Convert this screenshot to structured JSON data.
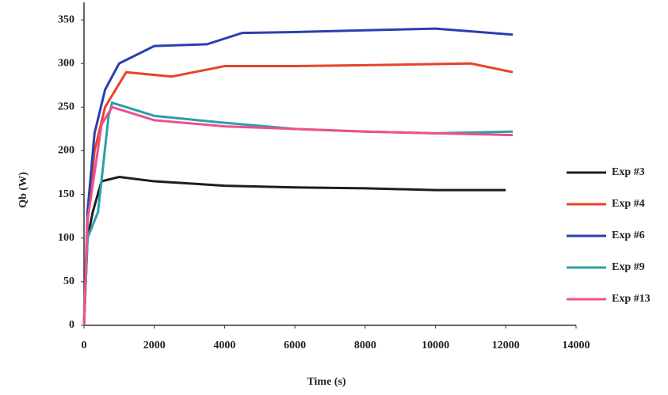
{
  "chart_data": {
    "type": "line",
    "xlabel": "Time (s)",
    "ylabel": "Qb (W)",
    "xlim": [
      0,
      14000
    ],
    "xticks": [
      0,
      2000,
      4000,
      6000,
      8000,
      10000,
      12000,
      14000
    ],
    "ylim": [
      0,
      370
    ],
    "yticks": [
      0,
      50,
      100,
      150,
      200,
      250,
      300,
      350
    ],
    "legend": "right",
    "series": [
      {
        "name": "Exp #3",
        "color": "#1e1e1e",
        "x": [
          0,
          100,
          250,
          500,
          1000,
          2000,
          4000,
          6000,
          8000,
          10000,
          12000
        ],
        "values": [
          0,
          100,
          130,
          165,
          170,
          165,
          160,
          158,
          157,
          155,
          155
        ]
      },
      {
        "name": "Exp #4",
        "color": "#e8432a",
        "x": [
          0,
          100,
          300,
          600,
          1200,
          2500,
          4000,
          6000,
          8000,
          11000,
          12200
        ],
        "values": [
          0,
          120,
          200,
          250,
          290,
          285,
          297,
          297,
          298,
          300,
          290
        ]
      },
      {
        "name": "Exp #6",
        "color": "#2a3fb0",
        "x": [
          0,
          100,
          300,
          600,
          1000,
          2000,
          3500,
          4500,
          6000,
          8000,
          10000,
          12200
        ],
        "values": [
          0,
          130,
          220,
          270,
          300,
          320,
          322,
          335,
          336,
          338,
          340,
          333
        ]
      },
      {
        "name": "Exp #9",
        "color": "#2aa0a8",
        "x": [
          0,
          100,
          400,
          700,
          800,
          2000,
          4000,
          6000,
          8000,
          10000,
          12200
        ],
        "values": [
          0,
          100,
          130,
          240,
          255,
          240,
          232,
          225,
          222,
          220,
          222
        ]
      },
      {
        "name": "Exp #13",
        "color": "#f0508c",
        "x": [
          0,
          100,
          500,
          800,
          2000,
          4000,
          6000,
          8000,
          10000,
          12200
        ],
        "values": [
          0,
          120,
          230,
          250,
          235,
          228,
          225,
          222,
          220,
          218
        ]
      }
    ]
  }
}
